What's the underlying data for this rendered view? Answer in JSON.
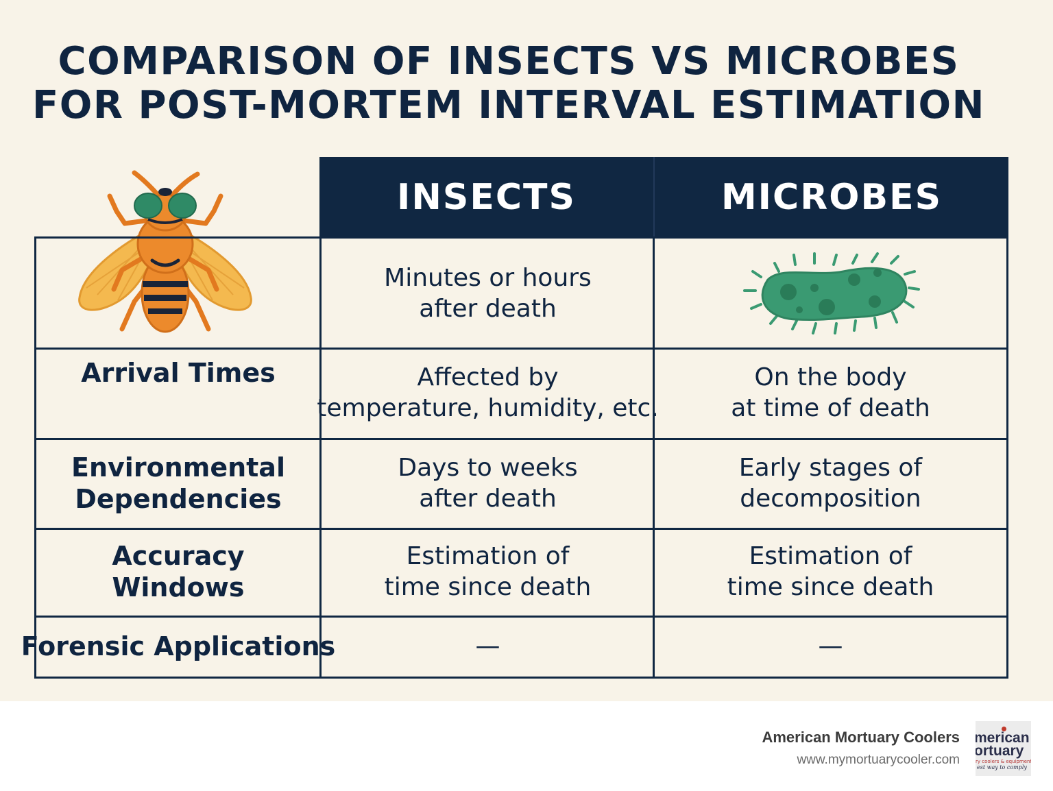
{
  "title": {
    "line1": "COMPARISON OF INSECTS VS MICROBES",
    "line2": "FOR POST-MORTEM INTERVAL ESTIMATION"
  },
  "table": {
    "headers": [
      "INSECTS",
      "MICROBES"
    ],
    "rows": [
      {
        "label": "",
        "insects": [
          "Minutes or hours",
          "after death"
        ],
        "microbes": []
      },
      {
        "label": [
          "Arrival Times"
        ],
        "insects": [
          "Affected by",
          "temperature, humidity, etc."
        ],
        "microbes": [
          "On the body",
          "at time of death"
        ]
      },
      {
        "label": [
          "Environmental",
          "Dependencies"
        ],
        "insects": [
          "Days to weeks",
          "after death"
        ],
        "microbes": [
          "Early stages of",
          "decomposition"
        ]
      },
      {
        "label": [
          "Accuracy",
          "Windows"
        ],
        "insects": [
          "Estimation of",
          "time since death"
        ],
        "microbes": [
          "Estimation of",
          "time since death"
        ]
      },
      {
        "label": [
          "Forensic Applications"
        ],
        "insects": [
          "—"
        ],
        "microbes": [
          "—"
        ]
      }
    ]
  },
  "icons": {
    "insect": "fly-icon",
    "microbe": "bacterium-icon"
  },
  "colors": {
    "background": "#f8f3e8",
    "header": "#102742",
    "text": "#0f2440",
    "fly_body": "#ec8a2c",
    "fly_wings": "#f3b74d",
    "fly_eyes": "#2f8a66",
    "microbe": "#3a9a72"
  },
  "footer": {
    "company": "American Mortuary Coolers",
    "url": "www.mymortuarycooler.com",
    "logo": {
      "line1": "merican",
      "line2": "ortuary",
      "line3": "ry coolers & equipment",
      "line4": "est way to comply"
    }
  }
}
